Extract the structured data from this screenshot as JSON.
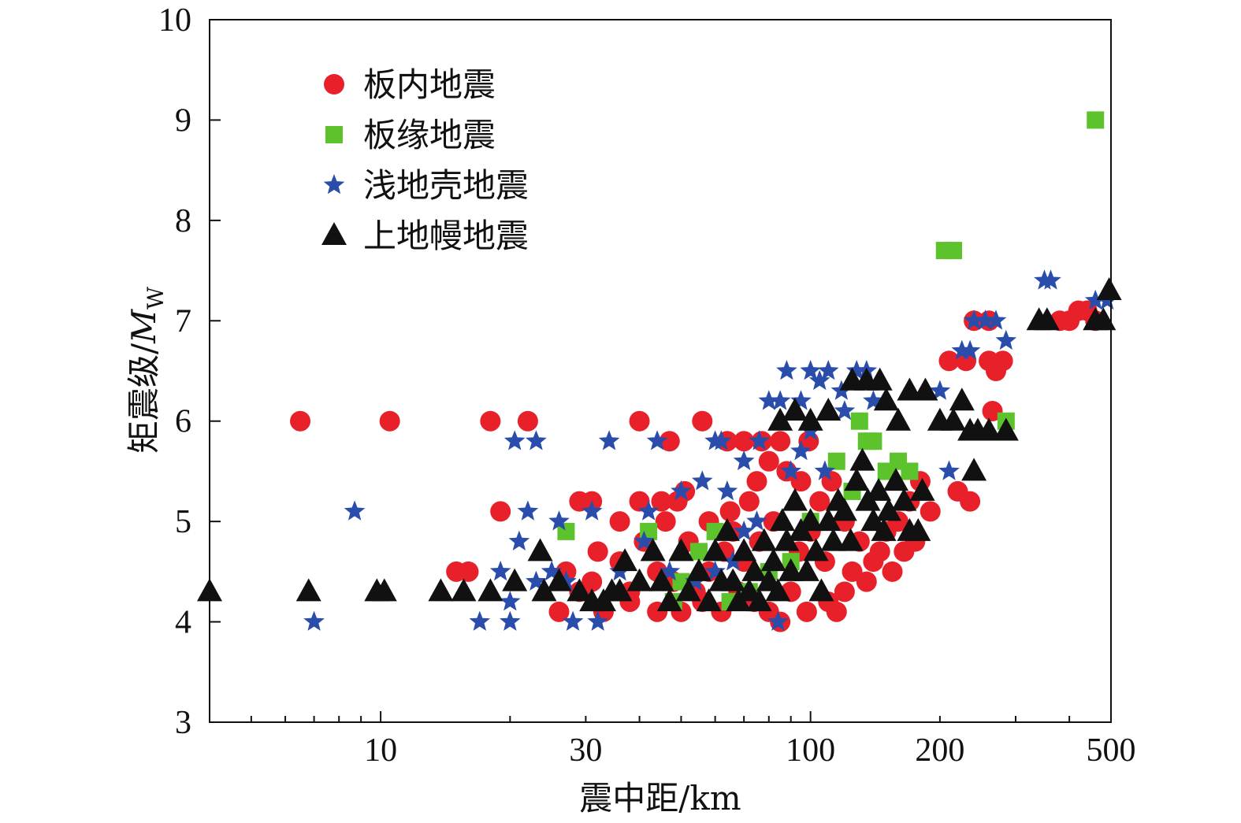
{
  "chart_data": {
    "type": "scatter",
    "x_scale": "log",
    "xlabel": "震中距/km",
    "ylabel_main": "矩震级/",
    "ylabel_symbol": "M",
    "ylabel_subscript": "W",
    "xlim": [
      4,
      500
    ],
    "ylim": [
      3,
      10
    ],
    "x_ticks": [
      10,
      30,
      100,
      200,
      500
    ],
    "y_ticks": [
      3,
      4,
      5,
      6,
      7,
      8,
      9,
      10
    ],
    "legend_position": "top-left",
    "series": [
      {
        "name": "板内地震",
        "marker": "circle",
        "color": "#e8202a",
        "points": [
          [
            6.5,
            6.0
          ],
          [
            10.5,
            6.0
          ],
          [
            18,
            6.0
          ],
          [
            22,
            6.0
          ],
          [
            40,
            6.0
          ],
          [
            56,
            6.0
          ],
          [
            47,
            5.8
          ],
          [
            64,
            5.8
          ],
          [
            70,
            5.8
          ],
          [
            77,
            5.8
          ],
          [
            85,
            5.8
          ],
          [
            99,
            5.8
          ],
          [
            19,
            5.1
          ],
          [
            29,
            5.2
          ],
          [
            31,
            5.2
          ],
          [
            36,
            5.0
          ],
          [
            32,
            4.7
          ],
          [
            15,
            4.5
          ],
          [
            16,
            4.5
          ],
          [
            26,
            4.1
          ],
          [
            40,
            5.2
          ],
          [
            45,
            5.2
          ],
          [
            49,
            5.2
          ],
          [
            51,
            5.3
          ],
          [
            44,
            4.5
          ],
          [
            38,
            4.3
          ],
          [
            48,
            4.4
          ],
          [
            54,
            4.3
          ],
          [
            58,
            4.5
          ],
          [
            63,
            4.7
          ],
          [
            66,
            4.9
          ],
          [
            72,
            5.2
          ],
          [
            75,
            5.4
          ],
          [
            80,
            5.6
          ],
          [
            88,
            5.5
          ],
          [
            95,
            5.4
          ],
          [
            105,
            5.2
          ],
          [
            112,
            5.4
          ],
          [
            120,
            5.0
          ],
          [
            130,
            4.8
          ],
          [
            140,
            4.6
          ],
          [
            150,
            4.9
          ],
          [
            160,
            5.0
          ],
          [
            170,
            5.2
          ],
          [
            180,
            5.4
          ],
          [
            190,
            5.1
          ],
          [
            175,
            4.8
          ],
          [
            110,
            4.2
          ],
          [
            115,
            4.1
          ],
          [
            120,
            4.3
          ],
          [
            98,
            4.1
          ],
          [
            90,
            4.3
          ],
          [
            85,
            4.0
          ],
          [
            80,
            4.1
          ],
          [
            74,
            4.2
          ],
          [
            68,
            4.3
          ],
          [
            62,
            4.1
          ],
          [
            56,
            4.2
          ],
          [
            50,
            4.1
          ],
          [
            44,
            4.1
          ],
          [
            38,
            4.2
          ],
          [
            33,
            4.1
          ],
          [
            29,
            4.3
          ],
          [
            27,
            4.5
          ],
          [
            31,
            4.4
          ],
          [
            36,
            4.6
          ],
          [
            41,
            4.8
          ],
          [
            46,
            5.0
          ],
          [
            52,
            4.8
          ],
          [
            58,
            5.0
          ],
          [
            65,
            5.1
          ],
          [
            70,
            4.6
          ],
          [
            76,
            4.8
          ],
          [
            82,
            5.0
          ],
          [
            94,
            4.7
          ],
          [
            100,
            4.9
          ],
          [
            108,
            4.6
          ],
          [
            125,
            4.5
          ],
          [
            135,
            4.4
          ],
          [
            145,
            4.7
          ],
          [
            155,
            4.5
          ],
          [
            165,
            4.7
          ],
          [
            210,
            6.6
          ],
          [
            230,
            6.6
          ],
          [
            260,
            6.6
          ],
          [
            280,
            6.6
          ],
          [
            270,
            6.5
          ],
          [
            240,
            7.0
          ],
          [
            260,
            7.0
          ],
          [
            265,
            6.1
          ],
          [
            220,
            5.3
          ],
          [
            235,
            5.2
          ],
          [
            380,
            7.0
          ],
          [
            400,
            7.0
          ],
          [
            420,
            7.1
          ],
          [
            440,
            7.1
          ],
          [
            460,
            7.0
          ]
        ]
      },
      {
        "name": "板缘地震",
        "marker": "square",
        "color": "#5dc32d",
        "points": [
          [
            460,
            9.0
          ],
          [
            205,
            7.7
          ],
          [
            215,
            7.7
          ],
          [
            27,
            4.9
          ],
          [
            42,
            4.9
          ],
          [
            130,
            6.0
          ],
          [
            135,
            5.8
          ],
          [
            140,
            5.8
          ],
          [
            285,
            6.0
          ],
          [
            115,
            5.6
          ],
          [
            150,
            5.5
          ],
          [
            160,
            5.6
          ],
          [
            170,
            5.5
          ],
          [
            125,
            5.3
          ],
          [
            100,
            5.0
          ],
          [
            90,
            4.6
          ],
          [
            80,
            4.5
          ],
          [
            72,
            4.3
          ],
          [
            65,
            4.2
          ],
          [
            60,
            4.9
          ],
          [
            55,
            4.7
          ],
          [
            50,
            4.4
          ],
          [
            48,
            4.2
          ]
        ]
      },
      {
        "name": "浅地壳地震",
        "marker": "star",
        "color": "#2a4dab",
        "points": [
          [
            7,
            4.0
          ],
          [
            8.7,
            5.1
          ],
          [
            17,
            4.0
          ],
          [
            20,
            4.0
          ],
          [
            20.5,
            5.8
          ],
          [
            23,
            5.8
          ],
          [
            34,
            5.8
          ],
          [
            44,
            5.8
          ],
          [
            62,
            5.8
          ],
          [
            22,
            5.1
          ],
          [
            26,
            5.0
          ],
          [
            31,
            5.1
          ],
          [
            21,
            4.8
          ],
          [
            19,
            4.5
          ],
          [
            20,
            4.2
          ],
          [
            23,
            4.4
          ],
          [
            25,
            4.5
          ],
          [
            27,
            4.4
          ],
          [
            28,
            4.0
          ],
          [
            32,
            4.0
          ],
          [
            36,
            4.5
          ],
          [
            42,
            5.1
          ],
          [
            50,
            5.3
          ],
          [
            56,
            5.4
          ],
          [
            64,
            5.3
          ],
          [
            70,
            5.6
          ],
          [
            76,
            5.8
          ],
          [
            85,
            6.2
          ],
          [
            88,
            6.5
          ],
          [
            95,
            6.2
          ],
          [
            100,
            6.5
          ],
          [
            105,
            6.4
          ],
          [
            110,
            6.5
          ],
          [
            118,
            6.3
          ],
          [
            128,
            6.5
          ],
          [
            135,
            6.5
          ],
          [
            140,
            6.2
          ],
          [
            120,
            6.1
          ],
          [
            80,
            6.2
          ],
          [
            75,
            5.0
          ],
          [
            70,
            4.9
          ],
          [
            66,
            4.6
          ],
          [
            60,
            4.5
          ],
          [
            54,
            4.4
          ],
          [
            47,
            4.5
          ],
          [
            41,
            4.8
          ],
          [
            84,
            4.0
          ],
          [
            200,
            6.3
          ],
          [
            210,
            5.5
          ],
          [
            225,
            6.7
          ],
          [
            235,
            6.7
          ],
          [
            240,
            7.0
          ],
          [
            255,
            7.0
          ],
          [
            270,
            7.0
          ],
          [
            285,
            6.8
          ],
          [
            350,
            7.4
          ],
          [
            362,
            7.4
          ],
          [
            460,
            7.2
          ],
          [
            490,
            7.2
          ],
          [
            90,
            5.5
          ],
          [
            95,
            5.7
          ],
          [
            100,
            5.9
          ],
          [
            108,
            5.5
          ],
          [
            60,
            5.8
          ]
        ]
      },
      {
        "name": "上地幔地震",
        "marker": "triangle",
        "color": "#111111",
        "points": [
          [
            4,
            4.3
          ],
          [
            6.8,
            4.3
          ],
          [
            9.8,
            4.3
          ],
          [
            10.2,
            4.3
          ],
          [
            13.8,
            4.3
          ],
          [
            15.6,
            4.3
          ],
          [
            18,
            4.3
          ],
          [
            20.5,
            4.4
          ],
          [
            23.5,
            4.7
          ],
          [
            24,
            4.3
          ],
          [
            26,
            4.4
          ],
          [
            29,
            4.3
          ],
          [
            31,
            4.2
          ],
          [
            33,
            4.2
          ],
          [
            34.5,
            4.3
          ],
          [
            36,
            4.3
          ],
          [
            37,
            4.6
          ],
          [
            40,
            4.4
          ],
          [
            43,
            4.7
          ],
          [
            45,
            4.4
          ],
          [
            47,
            4.2
          ],
          [
            50,
            4.7
          ],
          [
            52,
            4.3
          ],
          [
            55,
            4.5
          ],
          [
            58,
            4.2
          ],
          [
            60,
            4.7
          ],
          [
            62,
            4.4
          ],
          [
            64,
            4.9
          ],
          [
            66,
            4.4
          ],
          [
            68,
            4.2
          ],
          [
            70,
            4.7
          ],
          [
            72,
            4.3
          ],
          [
            74,
            4.5
          ],
          [
            76,
            4.2
          ],
          [
            78,
            4.8
          ],
          [
            80,
            4.4
          ],
          [
            82,
            4.6
          ],
          [
            84,
            4.3
          ],
          [
            86,
            5.0
          ],
          [
            88,
            4.8
          ],
          [
            90,
            4.5
          ],
          [
            92,
            5.2
          ],
          [
            95,
            4.9
          ],
          [
            98,
            4.5
          ],
          [
            100,
            5.0
          ],
          [
            103,
            4.7
          ],
          [
            106,
            4.3
          ],
          [
            110,
            5.0
          ],
          [
            113,
            4.8
          ],
          [
            116,
            5.2
          ],
          [
            120,
            5.1
          ],
          [
            124,
            4.8
          ],
          [
            128,
            5.4
          ],
          [
            132,
            5.6
          ],
          [
            136,
            5.2
          ],
          [
            140,
            5.0
          ],
          [
            144,
            5.3
          ],
          [
            148,
            4.9
          ],
          [
            152,
            5.1
          ],
          [
            158,
            5.4
          ],
          [
            165,
            5.2
          ],
          [
            170,
            4.9
          ],
          [
            178,
            4.9
          ],
          [
            182,
            5.3
          ],
          [
            85,
            6.0
          ],
          [
            92,
            6.1
          ],
          [
            100,
            6.0
          ],
          [
            110,
            6.1
          ],
          [
            125,
            6.4
          ],
          [
            135,
            6.4
          ],
          [
            145,
            6.4
          ],
          [
            150,
            6.2
          ],
          [
            160,
            6.0
          ],
          [
            170,
            6.3
          ],
          [
            185,
            6.3
          ],
          [
            200,
            6.0
          ],
          [
            215,
            6.0
          ],
          [
            225,
            6.2
          ],
          [
            235,
            5.9
          ],
          [
            245,
            5.9
          ],
          [
            260,
            5.9
          ],
          [
            285,
            5.9
          ],
          [
            240,
            5.5
          ],
          [
            340,
            7.0
          ],
          [
            355,
            7.0
          ],
          [
            460,
            7.0
          ],
          [
            480,
            7.0
          ],
          [
            495,
            7.3
          ]
        ]
      }
    ]
  }
}
